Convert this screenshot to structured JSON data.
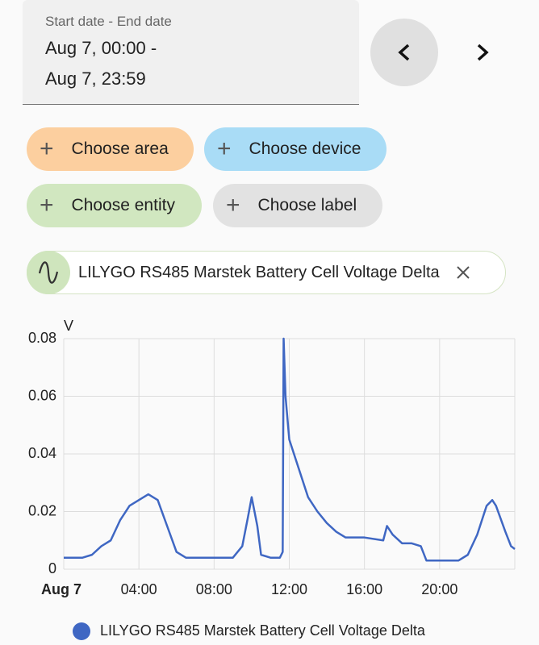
{
  "date_picker": {
    "label": "Start date - End date",
    "start": "Aug 7, 00:00 -",
    "end": "Aug 7, 23:59"
  },
  "filters": [
    "Choose area",
    "Choose device",
    "Choose entity",
    "Choose label"
  ],
  "selected_entity": "LILYGO RS485 Marstek Battery Cell Voltage Delta",
  "chart_data": {
    "type": "line",
    "y_label": "V",
    "x": [
      0,
      0.5,
      1,
      1.5,
      2,
      2.5,
      3,
      3.5,
      4,
      4.5,
      5,
      5.5,
      6,
      6.5,
      7,
      8,
      9,
      9.5,
      9.8,
      10,
      10.3,
      10.5,
      11,
      11.5,
      11.65,
      11.7,
      11.8,
      12,
      12.5,
      13,
      13.5,
      14,
      14.5,
      15,
      16,
      17,
      17.2,
      17.5,
      18,
      18.5,
      19,
      19.3,
      20,
      21,
      21.5,
      22,
      22.5,
      22.8,
      23,
      23.5,
      23.8,
      24
    ],
    "series": [
      {
        "name": "LILYGO RS485 Marstek Battery Cell Voltage Delta",
        "color": "#3f67c3",
        "values": [
          0.004,
          0.004,
          0.004,
          0.005,
          0.008,
          0.01,
          0.017,
          0.022,
          0.024,
          0.026,
          0.024,
          0.015,
          0.006,
          0.004,
          0.004,
          0.004,
          0.004,
          0.008,
          0.018,
          0.025,
          0.015,
          0.005,
          0.004,
          0.004,
          0.006,
          0.08,
          0.06,
          0.045,
          0.035,
          0.025,
          0.02,
          0.016,
          0.013,
          0.011,
          0.011,
          0.01,
          0.015,
          0.012,
          0.009,
          0.009,
          0.008,
          0.003,
          0.003,
          0.003,
          0.005,
          0.012,
          0.022,
          0.024,
          0.022,
          0.013,
          0.008,
          0.007
        ]
      }
    ],
    "xlim": [
      0,
      24
    ],
    "xticks": [
      {
        "value": 0,
        "label": "Aug 7"
      },
      {
        "value": 4,
        "label": "04:00"
      },
      {
        "value": 8,
        "label": "08:00"
      },
      {
        "value": 12,
        "label": "12:00"
      },
      {
        "value": 16,
        "label": "16:00"
      },
      {
        "value": 20,
        "label": "20:00"
      }
    ],
    "ylim": [
      0,
      0.08
    ],
    "yticks": [
      0,
      0.02,
      0.04,
      0.06,
      0.08
    ],
    "grid": true
  }
}
